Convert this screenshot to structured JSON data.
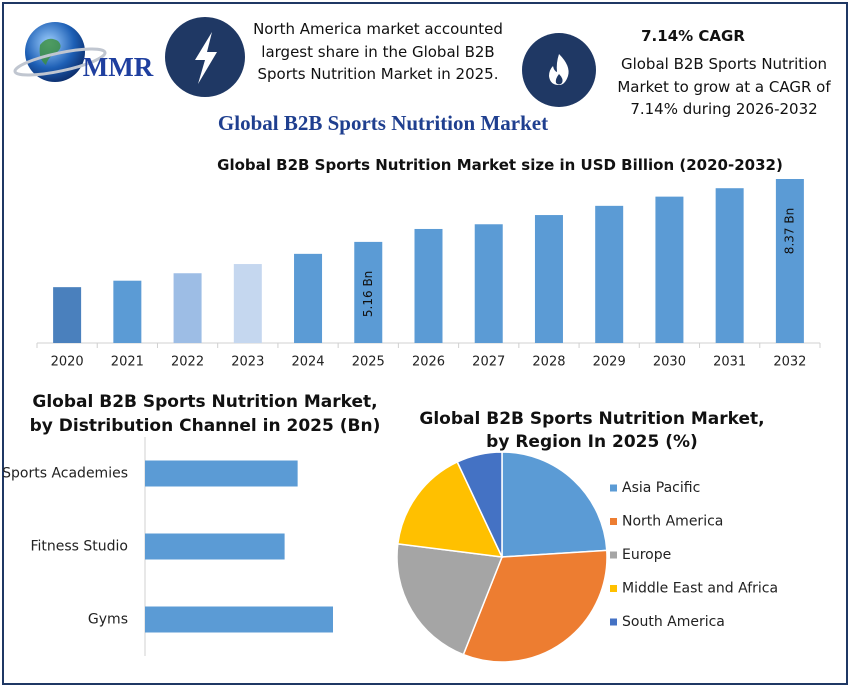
{
  "header": {
    "logo": "MMR",
    "note_left": "North America market accounted largest share in the Global B2B Sports Nutrition Market in 2025.",
    "cagr_title": "7.14% CAGR",
    "cagr_text": "Global B2B Sports Nutrition Market to grow at a CAGR of 7.14% during 2026-2032",
    "main_title": "Global B2B Sports Nutrition Market"
  },
  "chart_data": [
    {
      "type": "bar",
      "title": "Global B2B Sports Nutrition Market size in USD Billion (2020-2032)",
      "categories": [
        "2020",
        "2021",
        "2022",
        "2023",
        "2024",
        "2025",
        "2026",
        "2027",
        "2028",
        "2029",
        "2030",
        "2031",
        "2032"
      ],
      "values": [
        2.85,
        3.18,
        3.56,
        4.03,
        4.55,
        5.16,
        5.82,
        6.06,
        6.53,
        7.0,
        7.47,
        7.9,
        8.37
      ],
      "value_labels": [
        null,
        null,
        null,
        null,
        null,
        "5.16 Bn",
        null,
        null,
        null,
        null,
        null,
        null,
        "8.37 Bn"
      ],
      "colors": [
        "#4a80bd",
        "#5b9bd5",
        "#9dbde5",
        "#c5d7ef",
        "#5b9bd5",
        "#5b9bd5",
        "#5b9bd5",
        "#5b9bd5",
        "#5b9bd5",
        "#5b9bd5",
        "#5b9bd5",
        "#5b9bd5",
        "#5b9bd5"
      ]
    },
    {
      "type": "hbar",
      "title": "Global B2B Sports Nutrition Market, by Distribution Channel in 2025 (Bn)",
      "categories": [
        "Sports Academies",
        "Fitness Studio",
        "Gyms"
      ],
      "values": [
        1.64,
        1.5,
        2.02
      ],
      "color": "#5b9bd5"
    },
    {
      "type": "pie",
      "title": "Global B2B Sports Nutrition Market, by Region In 2025 (%)",
      "categories": [
        "Asia Pacific",
        "North America",
        "Europe",
        "Middle East and Africa",
        "South America"
      ],
      "values": [
        24,
        32,
        21,
        16,
        7
      ],
      "colors": [
        "#5b9bd5",
        "#ed7d31",
        "#a5a5a5",
        "#ffc000",
        "#4472c4"
      ]
    }
  ]
}
